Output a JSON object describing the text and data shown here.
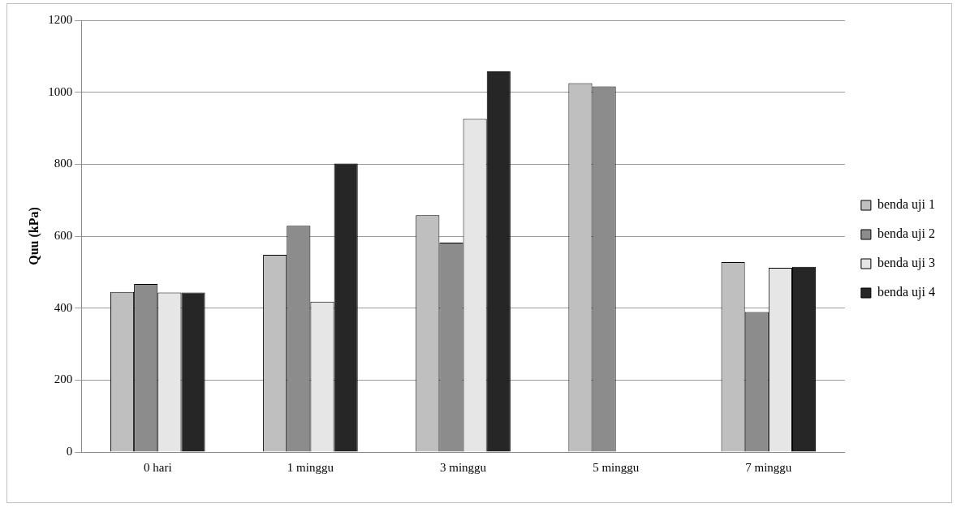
{
  "chart_data": {
    "type": "bar",
    "ylabel": "Quu (kPa)",
    "categories": [
      "0 hari",
      "1 minggu",
      "3 minggu",
      "5 minggu",
      "7 minggu"
    ],
    "series": [
      {
        "name": "benda uji 1",
        "color": "#bfbfbf",
        "values": [
          445,
          548,
          658,
          1025,
          528
        ]
      },
      {
        "name": "benda uji 2",
        "color": "#8c8c8c",
        "values": [
          467,
          629,
          582,
          1016,
          389
        ]
      },
      {
        "name": "benda uji 3",
        "color": "#e6e6e6",
        "values": [
          443,
          418,
          926,
          null,
          512
        ]
      },
      {
        "name": "benda uji 4",
        "color": "#262626",
        "values": [
          443,
          802,
          1058,
          null,
          515
        ]
      }
    ],
    "ylim": [
      0,
      1200
    ],
    "yticks": [
      0,
      200,
      400,
      600,
      800,
      1000,
      1200
    ],
    "grid": "y",
    "legend": "right"
  }
}
